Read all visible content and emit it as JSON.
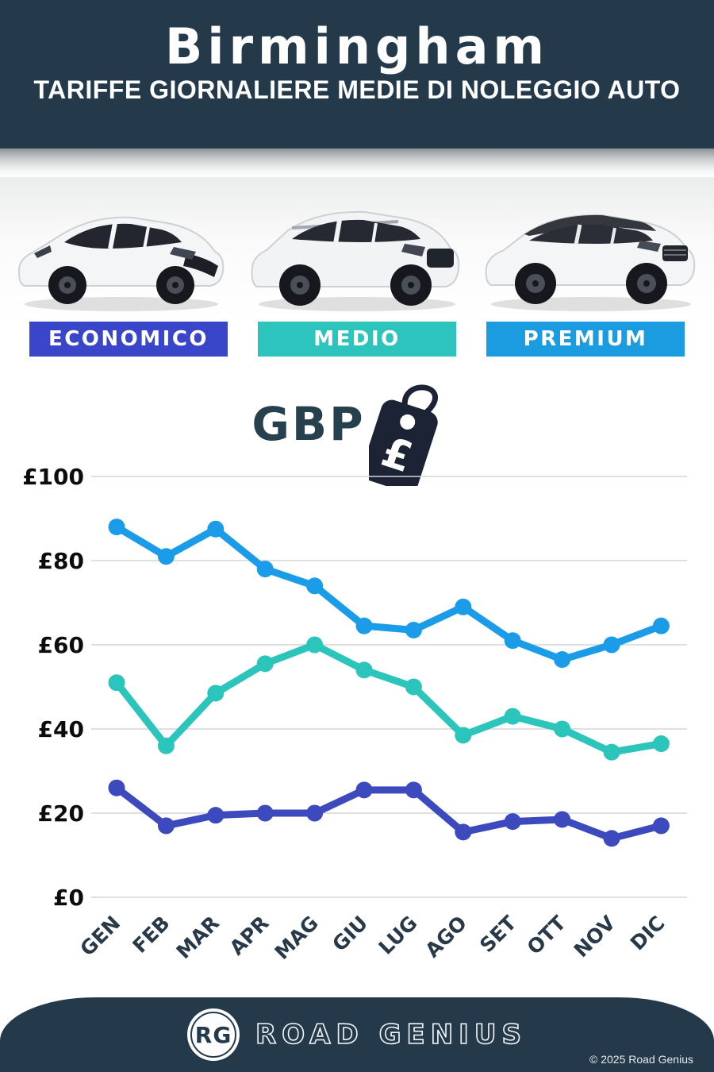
{
  "header": {
    "title": "Birmingham",
    "subtitle": "TARIFFE GIORNALIERE MEDIE DI NOLEGGIO AUTO"
  },
  "categories": [
    {
      "label": "ECONOMICO",
      "color": "#3a46c9"
    },
    {
      "label": "MEDIO",
      "color": "#2cc4bc"
    },
    {
      "label": "PREMIUM",
      "color": "#1b9ce0"
    }
  ],
  "currency": {
    "label": "GBP",
    "symbol": "£"
  },
  "chart_data": {
    "type": "line",
    "categories": [
      "GEN",
      "FEB",
      "MAR",
      "APR",
      "MAG",
      "GIU",
      "LUG",
      "AGO",
      "SET",
      "OTT",
      "NOV",
      "DIC"
    ],
    "series": [
      {
        "name": "Premium",
        "color": "#1b9ce8",
        "values": [
          88,
          81,
          87.5,
          78,
          74,
          64.5,
          63.5,
          69,
          61,
          56.5,
          60,
          64.5
        ]
      },
      {
        "name": "Medio",
        "color": "#2cc5bc",
        "values": [
          51,
          36,
          48.5,
          55.5,
          60,
          54,
          50,
          38.5,
          43,
          40,
          34.5,
          36.5
        ]
      },
      {
        "name": "Economico",
        "color": "#3d4abe",
        "values": [
          26,
          17,
          19.5,
          20,
          20,
          25.5,
          25.5,
          15.5,
          18,
          18.5,
          14,
          17
        ]
      }
    ],
    "yticks": [
      0,
      20,
      40,
      60,
      80,
      100
    ],
    "ylim": [
      0,
      100
    ],
    "ytick_prefix": "£",
    "grid": true,
    "legend": "none",
    "title": "",
    "xlabel": "",
    "ylabel": ""
  },
  "footer": {
    "logo_initials": "RG",
    "brand": "ROAD GENIUS",
    "copyright": "© 2025 Road Genius"
  }
}
